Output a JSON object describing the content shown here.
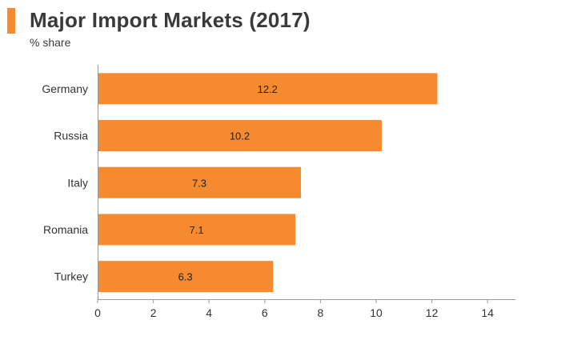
{
  "header": {
    "title": "Major Import Markets (2017)",
    "subtitle": "% share"
  },
  "colors": {
    "accent": "#f58a31",
    "bar": "#f58a31",
    "axis": "#999999",
    "text": "#333333"
  },
  "chart_data": {
    "type": "bar",
    "orientation": "horizontal",
    "title": "Major Import Markets (2017)",
    "subtitle": "% share",
    "xlabel": "",
    "ylabel": "",
    "categories": [
      "Germany",
      "Russia",
      "Italy",
      "Romania",
      "Turkey"
    ],
    "values": [
      12.2,
      10.2,
      7.3,
      7.1,
      6.3
    ],
    "value_labels": [
      "12.2",
      "10.2",
      "7.3",
      "7.1",
      "6.3"
    ],
    "xlim": [
      0,
      15
    ],
    "xticks": [
      0,
      2,
      4,
      6,
      8,
      10,
      12,
      14
    ],
    "xtick_labels": [
      "0",
      "2",
      "4",
      "6",
      "8",
      "10",
      "12",
      "14"
    ],
    "grid": false,
    "legend": "none"
  }
}
